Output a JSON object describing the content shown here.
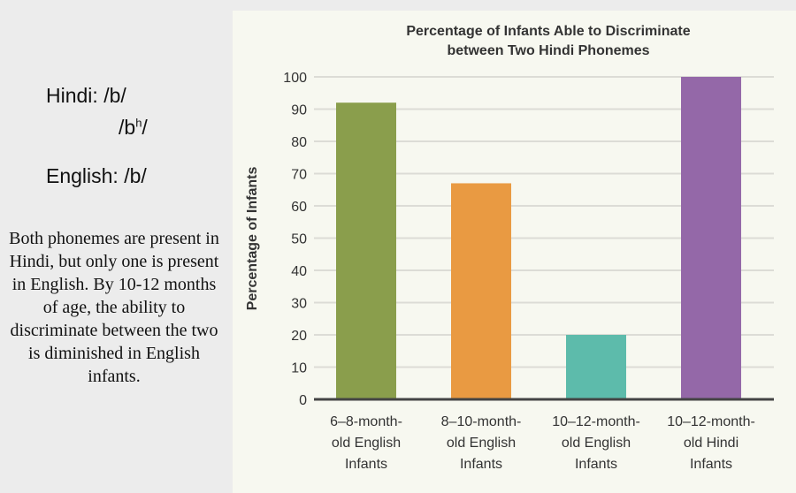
{
  "left_panel": {
    "hindi_label": "Hindi: /b/",
    "hindi_second_base": "/b",
    "hindi_second_sup": "h",
    "hindi_second_end": "/",
    "english_label": "English: /b/",
    "description": "Both phonemes are present in Hindi, but only one is present in English. By 10-12 months of age, the ability to discriminate between the two is diminished in English infants."
  },
  "chart_data": {
    "type": "bar",
    "title": [
      "Percentage of Infants Able to Discriminate",
      "between Two Hindi Phonemes"
    ],
    "xlabel": "",
    "ylabel": "Percentage of Infants",
    "ylim": [
      0,
      100
    ],
    "yticks": [
      0,
      10,
      20,
      30,
      40,
      50,
      60,
      70,
      80,
      90,
      100
    ],
    "grid": true,
    "categories": [
      [
        "6–8-month-",
        "old English",
        "Infants"
      ],
      [
        "8–10-month-",
        "old English",
        "Infants"
      ],
      [
        "10–12-month-",
        "old English",
        "Infants"
      ],
      [
        "10–12-month-",
        "old Hindi",
        "Infants"
      ]
    ],
    "values": [
      92,
      67,
      20,
      100
    ],
    "colors": [
      "#8a9e4c",
      "#e99a42",
      "#5dbbab",
      "#9468a8"
    ]
  }
}
